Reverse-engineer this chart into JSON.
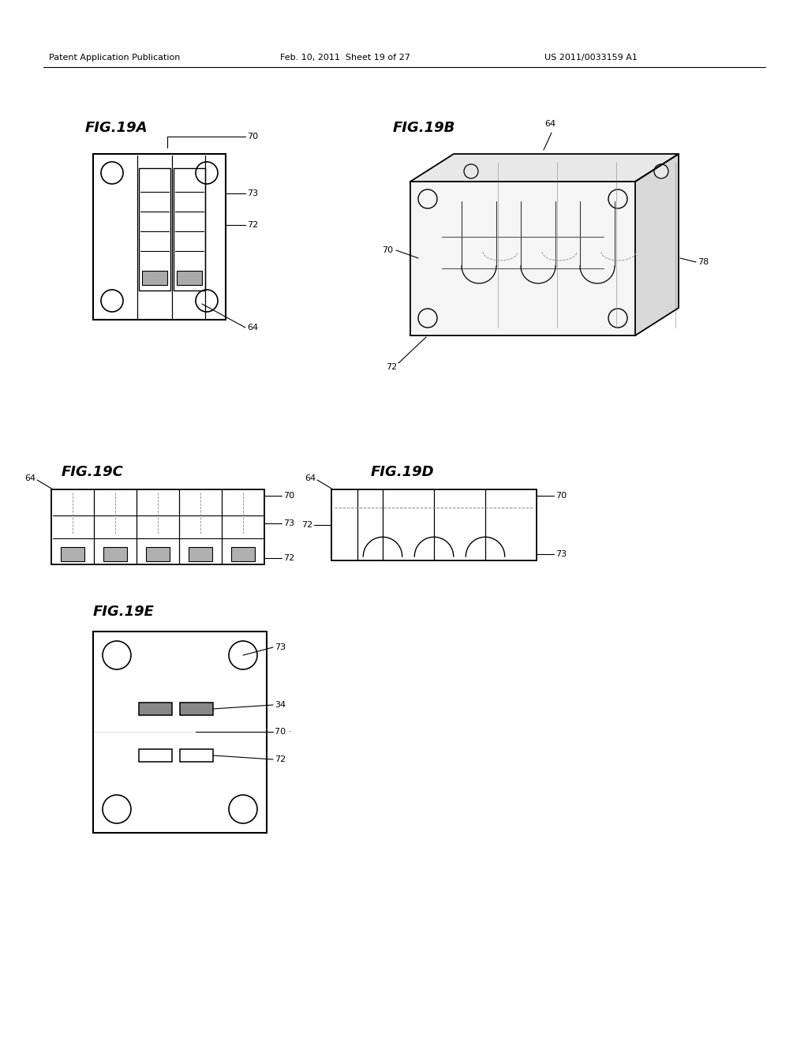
{
  "background_color": "#ffffff",
  "header_left": "Patent Application Publication",
  "header_center": "Feb. 10, 2011  Sheet 19 of 27",
  "header_right": "US 2011/0033159 A1",
  "line_color": "#000000",
  "fig19a_title": "FIG.19A",
  "fig19b_title": "FIG.19B",
  "fig19c_title": "FIG.19C",
  "fig19d_title": "FIG.19D",
  "fig19e_title": "FIG.19E"
}
